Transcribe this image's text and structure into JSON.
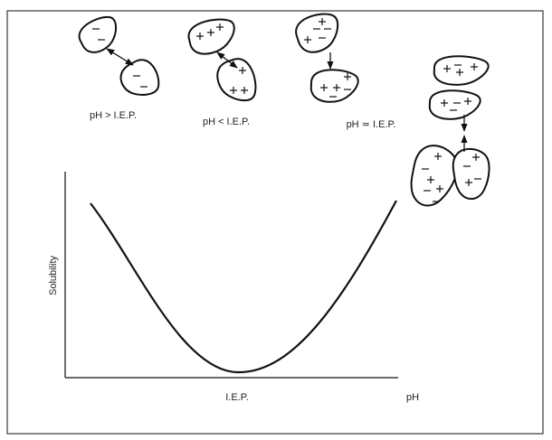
{
  "conditions": [
    {
      "label": "pH > I.E.P."
    },
    {
      "label": "pH < I.E.P."
    },
    {
      "label": "pH ≃ I.E.P."
    }
  ],
  "axes": {
    "y_label": "Solubility",
    "x_label": "pH",
    "x_marker": "I.E.P."
  }
}
